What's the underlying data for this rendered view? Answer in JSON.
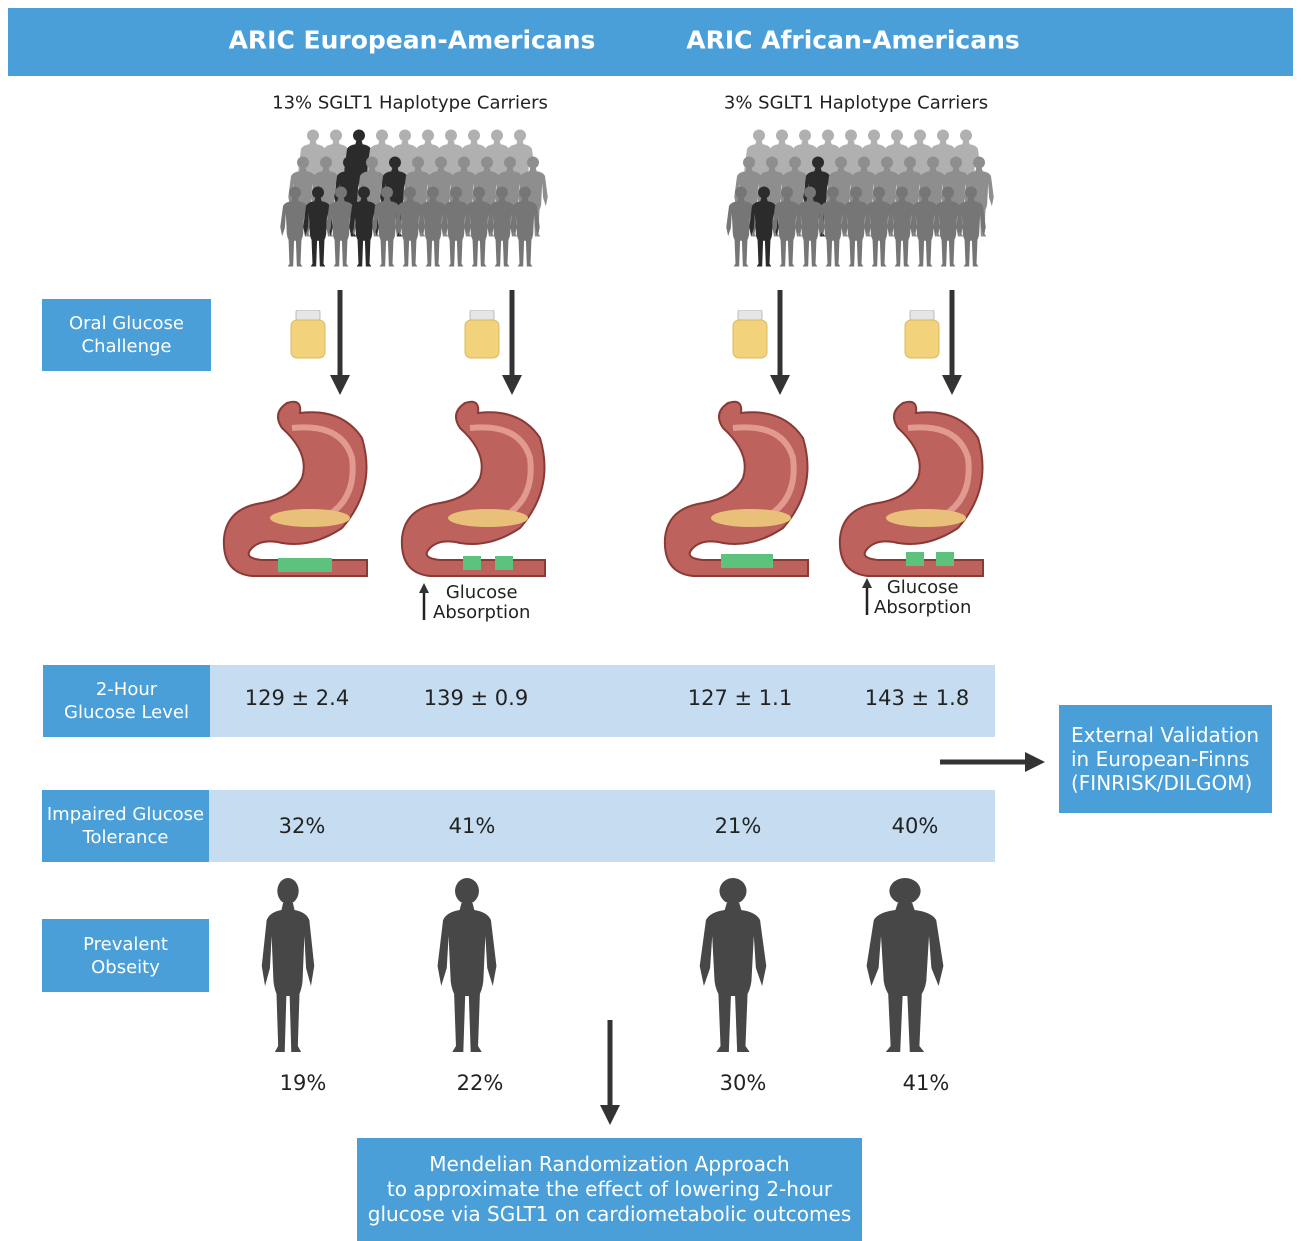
{
  "header": {
    "groups": [
      "ARIC European-Americans",
      "ARIC African-Americans"
    ]
  },
  "carriers": [
    "13% SGLT1 Haplotype Carriers",
    "3% SGLT1 Haplotype Carriers"
  ],
  "row_labels": {
    "oral_glucose": [
      "Oral Glucose",
      "Challenge"
    ],
    "glucose_level": [
      "2-Hour",
      "Glucose Level"
    ],
    "impaired": [
      "Impaired Glucose",
      "Tolerance"
    ],
    "obesity": [
      "Prevalent",
      "Obseity"
    ]
  },
  "absorption": [
    "Glucose",
    "Absorption"
  ],
  "glucose_level": [
    "129 ± 2.4",
    "139 ± 0.9",
    "127 ± 1.1",
    "143 ± 1.8"
  ],
  "impaired": [
    "32%",
    "41%",
    "21%",
    "40%"
  ],
  "obesity": [
    "19%",
    "22%",
    "30%",
    "41%"
  ],
  "validation": [
    "External Validation",
    "in European-Finns",
    "(FINRISK/DILGOM)"
  ],
  "conclusion": [
    "Mendelian Randomization Approach",
    "to approximate the effect of lowering 2-hour",
    "glucose via SGLT1 on cardiometabolic outcomes"
  ]
}
